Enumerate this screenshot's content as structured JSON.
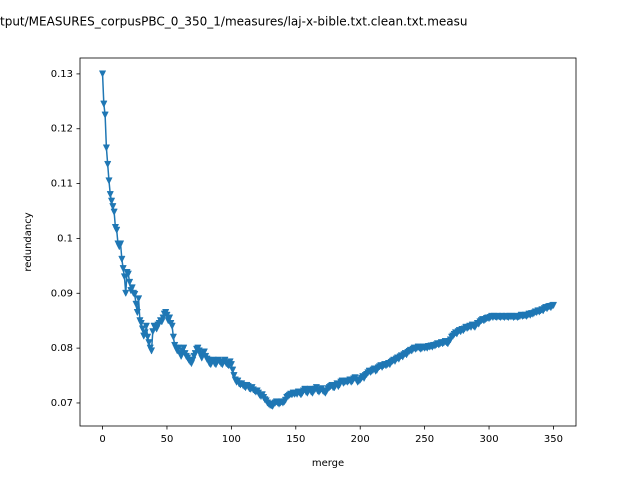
{
  "chart_data": {
    "type": "line",
    "title": "tput/MEASURES_corpusPBC_0_350_1/measures/laj-x-bible.txt.clean.txt.measu",
    "xlabel": "merge",
    "ylabel": "redundancy",
    "color": "#1f77b4",
    "marker": "v",
    "xlim": [
      -17.5,
      367.5
    ],
    "ylim": [
      0.0658,
      0.1329
    ],
    "xticks": [
      0,
      50,
      100,
      150,
      200,
      250,
      300,
      350
    ],
    "yticks": [
      0.07,
      0.08,
      0.09,
      0.1,
      0.11,
      0.12,
      0.13
    ],
    "x": [
      0,
      1,
      2,
      3,
      4,
      5,
      6,
      7,
      8,
      9,
      10,
      11,
      12,
      13,
      14,
      15,
      16,
      17,
      18,
      19,
      20,
      21,
      22,
      23,
      24,
      25,
      26,
      27,
      28,
      29,
      30,
      31,
      32,
      33,
      34,
      35,
      36,
      37,
      38,
      39,
      40,
      41,
      42,
      43,
      44,
      45,
      46,
      47,
      48,
      49,
      50,
      51,
      52,
      53,
      54,
      55,
      56,
      57,
      58,
      59,
      60,
      61,
      62,
      63,
      64,
      65,
      66,
      67,
      68,
      69,
      70,
      71,
      72,
      73,
      74,
      75,
      76,
      77,
      78,
      79,
      80,
      81,
      82,
      83,
      84,
      85,
      86,
      87,
      88,
      89,
      90,
      91,
      92,
      93,
      94,
      95,
      96,
      97,
      98,
      99,
      100,
      101,
      102,
      103,
      104,
      105,
      106,
      107,
      108,
      109,
      110,
      111,
      112,
      113,
      114,
      115,
      116,
      117,
      118,
      119,
      120,
      121,
      122,
      123,
      124,
      125,
      126,
      127,
      128,
      129,
      130,
      131,
      132,
      133,
      134,
      135,
      136,
      137,
      138,
      139,
      140,
      141,
      142,
      143,
      144,
      145,
      146,
      147,
      148,
      149,
      150,
      151,
      152,
      153,
      154,
      155,
      156,
      157,
      158,
      159,
      160,
      161,
      162,
      163,
      164,
      165,
      166,
      167,
      168,
      169,
      170,
      171,
      172,
      173,
      174,
      175,
      176,
      177,
      178,
      179,
      180,
      181,
      182,
      183,
      184,
      185,
      186,
      187,
      188,
      189,
      190,
      191,
      192,
      193,
      194,
      195,
      196,
      197,
      198,
      199,
      200,
      201,
      202,
      203,
      204,
      205,
      206,
      207,
      208,
      209,
      210,
      211,
      212,
      213,
      214,
      215,
      216,
      217,
      218,
      219,
      220,
      221,
      222,
      223,
      224,
      225,
      226,
      227,
      228,
      229,
      230,
      231,
      232,
      233,
      234,
      235,
      236,
      237,
      238,
      239,
      240,
      241,
      242,
      243,
      244,
      245,
      246,
      247,
      248,
      249,
      250,
      251,
      252,
      253,
      254,
      255,
      256,
      257,
      258,
      259,
      260,
      261,
      262,
      263,
      264,
      265,
      266,
      267,
      268,
      269,
      270,
      271,
      272,
      273,
      274,
      275,
      276,
      277,
      278,
      279,
      280,
      281,
      282,
      283,
      284,
      285,
      286,
      287,
      288,
      289,
      290,
      291,
      292,
      293,
      294,
      295,
      296,
      297,
      298,
      299,
      300,
      301,
      302,
      303,
      304,
      305,
      306,
      307,
      308,
      309,
      310,
      311,
      312,
      313,
      314,
      315,
      316,
      317,
      318,
      319,
      320,
      321,
      322,
      323,
      324,
      325,
      326,
      327,
      328,
      329,
      330,
      331,
      332,
      333,
      334,
      335,
      336,
      337,
      338,
      339,
      340,
      341,
      342,
      343,
      344,
      345,
      346,
      347,
      348,
      349,
      350
    ],
    "values": [
      0.13,
      0.1245,
      0.1225,
      0.1165,
      0.1135,
      0.1105,
      0.108,
      0.1068,
      0.1058,
      0.1048,
      0.102,
      0.1015,
      0.099,
      0.0985,
      0.099,
      0.0962,
      0.0945,
      0.093,
      0.09,
      0.0938,
      0.0935,
      0.092,
      0.0905,
      0.091,
      0.09,
      0.0898,
      0.088,
      0.0865,
      0.089,
      0.085,
      0.0845,
      0.0835,
      0.0822,
      0.0828,
      0.084,
      0.082,
      0.081,
      0.08,
      0.0795,
      0.083,
      0.084,
      0.0838,
      0.0835,
      0.0842,
      0.0845,
      0.085,
      0.0848,
      0.0855,
      0.0862,
      0.0865,
      0.086,
      0.085,
      0.0855,
      0.0845,
      0.084,
      0.082,
      0.0805,
      0.08,
      0.0795,
      0.08,
      0.079,
      0.0785,
      0.0795,
      0.08,
      0.079,
      0.0785,
      0.0782,
      0.0778,
      0.0775,
      0.0772,
      0.0778,
      0.0785,
      0.079,
      0.0798,
      0.08,
      0.0795,
      0.0788,
      0.0782,
      0.079,
      0.0793,
      0.0785,
      0.078,
      0.0778,
      0.0772,
      0.077,
      0.0775,
      0.0778,
      0.0772,
      0.077,
      0.0775,
      0.0778,
      0.0775,
      0.0772,
      0.077,
      0.0775,
      0.0778,
      0.0772,
      0.077,
      0.0768,
      0.0775,
      0.077,
      0.076,
      0.075,
      0.0742,
      0.0738,
      0.074,
      0.0735,
      0.0733,
      0.0735,
      0.0732,
      0.073,
      0.0728,
      0.0732,
      0.073,
      0.0726,
      0.0725,
      0.0728,
      0.0724,
      0.0722,
      0.072,
      0.0722,
      0.0718,
      0.0714,
      0.0712,
      0.0715,
      0.071,
      0.0706,
      0.0704,
      0.07,
      0.0698,
      0.0696,
      0.0695,
      0.0694,
      0.0698,
      0.07,
      0.0702,
      0.07,
      0.0698,
      0.07,
      0.0702,
      0.07,
      0.0702,
      0.0705,
      0.071,
      0.0712,
      0.0714,
      0.0716,
      0.0715,
      0.0718,
      0.0716,
      0.0718,
      0.0716,
      0.072,
      0.0718,
      0.0715,
      0.0718,
      0.0722,
      0.0725,
      0.072,
      0.0718,
      0.0722,
      0.0725,
      0.072,
      0.0718,
      0.0722,
      0.0725,
      0.0728,
      0.0722,
      0.072,
      0.0723,
      0.0726,
      0.0722,
      0.072,
      0.0718,
      0.0722,
      0.0726,
      0.0728,
      0.073,
      0.0732,
      0.0728,
      0.0728,
      0.0732,
      0.0735,
      0.073,
      0.0733,
      0.0738,
      0.074,
      0.0736,
      0.0738,
      0.074,
      0.0738,
      0.074,
      0.0742,
      0.0738,
      0.074,
      0.0744,
      0.0746,
      0.0742,
      0.0738,
      0.074,
      0.0742,
      0.0745,
      0.0748,
      0.0745,
      0.075,
      0.0752,
      0.0755,
      0.0758,
      0.0756,
      0.0758,
      0.076,
      0.0762,
      0.0758,
      0.076,
      0.0764,
      0.0766,
      0.0768,
      0.0765,
      0.0768,
      0.077,
      0.0768,
      0.077,
      0.0772,
      0.077,
      0.0774,
      0.0776,
      0.0778,
      0.0776,
      0.078,
      0.0782,
      0.078,
      0.0784,
      0.0786,
      0.0784,
      0.0788,
      0.079,
      0.0788,
      0.0792,
      0.0794,
      0.0796,
      0.0795,
      0.0798,
      0.08,
      0.0798,
      0.08,
      0.0802,
      0.08,
      0.0798,
      0.08,
      0.0802,
      0.08,
      0.0802,
      0.08,
      0.0803,
      0.0802,
      0.0804,
      0.0802,
      0.0805,
      0.0804,
      0.0806,
      0.0808,
      0.0806,
      0.0808,
      0.081,
      0.0808,
      0.081,
      0.0812,
      0.081,
      0.0808,
      0.0812,
      0.0815,
      0.082,
      0.0822,
      0.0825,
      0.0828,
      0.0826,
      0.083,
      0.0832,
      0.083,
      0.0834,
      0.0832,
      0.0835,
      0.0838,
      0.0836,
      0.0838,
      0.084,
      0.0838,
      0.0842,
      0.084,
      0.0838,
      0.0842,
      0.0845,
      0.0844,
      0.0848,
      0.085,
      0.0852,
      0.085,
      0.0852,
      0.0854,
      0.0855,
      0.0854,
      0.0856,
      0.0858,
      0.0856,
      0.0858,
      0.0857,
      0.0856,
      0.0858,
      0.0857,
      0.0856,
      0.0858,
      0.0857,
      0.0856,
      0.0858,
      0.0857,
      0.0856,
      0.0858,
      0.0857,
      0.0858,
      0.0856,
      0.0857,
      0.0858,
      0.0856,
      0.0857,
      0.0858,
      0.086,
      0.0858,
      0.0859,
      0.086,
      0.0858,
      0.086,
      0.0862,
      0.086,
      0.0863,
      0.0862,
      0.0864,
      0.0866,
      0.0865,
      0.0868,
      0.0866,
      0.0868,
      0.087,
      0.0868,
      0.0872,
      0.0874,
      0.0872,
      0.0875,
      0.0876,
      0.0874,
      0.0877,
      0.0878
    ]
  }
}
